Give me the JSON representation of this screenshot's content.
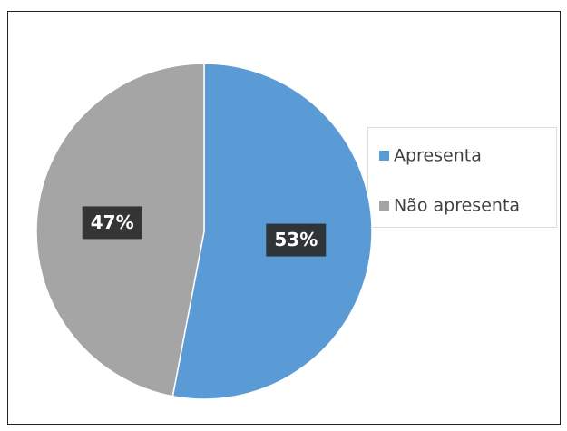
{
  "chart_data": {
    "type": "pie",
    "categories": [
      "Apresenta",
      "Não apresenta"
    ],
    "values": [
      53,
      47
    ],
    "value_labels": [
      "53%",
      "47%"
    ],
    "colors": [
      "#5b9bd5",
      "#a5a5a5"
    ],
    "legend": "right"
  }
}
